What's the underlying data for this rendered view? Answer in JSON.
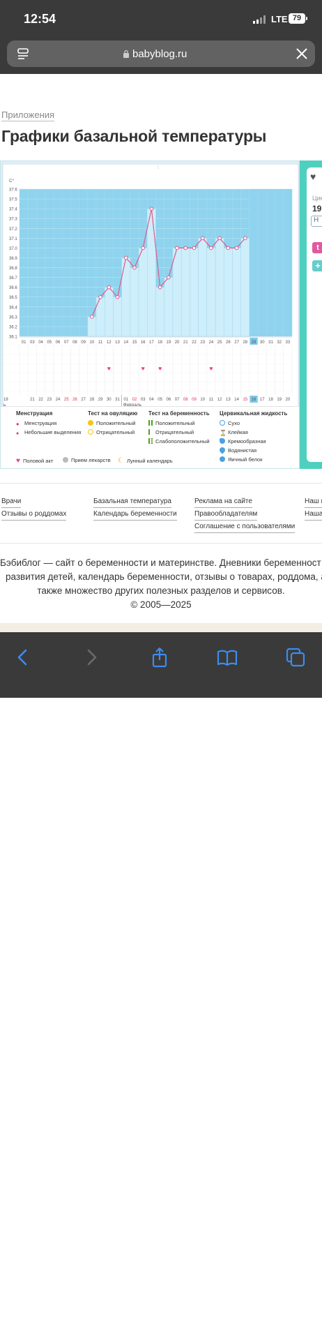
{
  "status": {
    "time": "12:54",
    "network": "LTE",
    "battery": "79"
  },
  "browser": {
    "url": "babyblog.ru"
  },
  "page": {
    "breadcrumb": "Приложения",
    "title": "Графики базальной температуры"
  },
  "chart": {
    "unit": "С°",
    "y_ticks": [
      "37.6",
      "37.5",
      "37.4",
      "37.3",
      "37.2",
      "37.1",
      "37.0",
      "36.9",
      "36.8",
      "36.7",
      "36.6",
      "36.5",
      "36.4",
      "36.3",
      "36.2",
      "36.1"
    ],
    "cycle_days": [
      "01",
      "03",
      "04",
      "05",
      "06",
      "07",
      "08",
      "09",
      "10",
      "11",
      "12",
      "13",
      "14",
      "15",
      "16",
      "17",
      "18",
      "19",
      "20",
      "21",
      "22",
      "23",
      "24",
      "25",
      "26",
      "27",
      "28",
      "29",
      "30",
      "31",
      "32",
      "33"
    ],
    "current_cycle_day": "29",
    "dates": [
      "18",
      "21",
      "22",
      "23",
      "24",
      "25",
      "26",
      "27",
      "28",
      "29",
      "30",
      "31",
      "01",
      "02",
      "03",
      "04",
      "05",
      "06",
      "07",
      "08",
      "09",
      "10",
      "11",
      "12",
      "13",
      "14",
      "15",
      "16",
      "17",
      "18",
      "19",
      "20"
    ],
    "red_dates": [
      "25",
      "26",
      "02",
      "08",
      "09",
      "15"
    ],
    "today_date": "16",
    "month_label": "Февраль",
    "left_edge_label": "ь",
    "heart_day_indices": [
      10,
      14,
      16,
      22
    ]
  },
  "chart_data": {
    "type": "line",
    "x": [
      "10",
      "11",
      "12",
      "13",
      "14",
      "15",
      "16",
      "17",
      "18",
      "19",
      "20",
      "21",
      "22",
      "23",
      "24",
      "25",
      "26",
      "27",
      "28",
      "29"
    ],
    "series": [
      {
        "values": [
          36.3,
          36.5,
          36.6,
          36.5,
          36.9,
          36.8,
          37.0,
          37.4,
          36.6,
          36.7,
          37.0,
          37.0,
          37.0,
          37.1,
          37.0,
          37.1,
          37.0,
          37.0,
          37.1,
          null
        ]
      }
    ],
    "ylim": [
      36.1,
      37.6
    ],
    "ylabel": "С°",
    "grid": true
  },
  "legend": {
    "menstruation": {
      "title": "Менструация",
      "items": [
        "Менструация",
        "Небольшие выделения"
      ]
    },
    "ovulation": {
      "title": "Тест на овуляцию",
      "items": [
        "Положительный",
        "Отрицательный"
      ]
    },
    "pregnancy": {
      "title": "Тест на беременность",
      "items": [
        "Положительный",
        "Отрицательный",
        "Слабоположительный"
      ]
    },
    "cervical": {
      "title": "Цервикальная жидкость",
      "items": [
        "Сухо",
        "Клейкая",
        "Кремообразная",
        "Водянистая",
        "Яичный белок"
      ]
    },
    "bottom": [
      "Половой акт",
      "Прием лекарств",
      "Лунный календарь"
    ],
    "colors": {
      "menstruation": "#e0304a",
      "ovulation_pos": "#f5c518",
      "preg": "#4fa010",
      "cervical": "#4aa3e0",
      "heart": "#e8408f",
      "moon": "#f0a020"
    }
  },
  "sidebar": {
    "cycle_label": "Цик",
    "cycle_num": "19",
    "btn": "Н",
    "pink_label": "t"
  },
  "footer": {
    "col1": [
      "Врачи",
      "Отзывы о роддомах"
    ],
    "col2": [
      "Базальная температура",
      "Календарь беременности"
    ],
    "col3": [
      "Реклама на сайте",
      "Правообладателям",
      "Соглашение с пользователями"
    ],
    "col4": [
      "Наш к",
      "Наша"
    ]
  },
  "about": {
    "line1": "Бэбиблог — сайт о беременности и материнстве. Дневники беременност",
    "line2": "развития детей, календарь беременности, отзывы о товарах, роддома, а",
    "line3": "также множество других полезных разделов и сервисов.",
    "line4": "© 2005—2025"
  }
}
